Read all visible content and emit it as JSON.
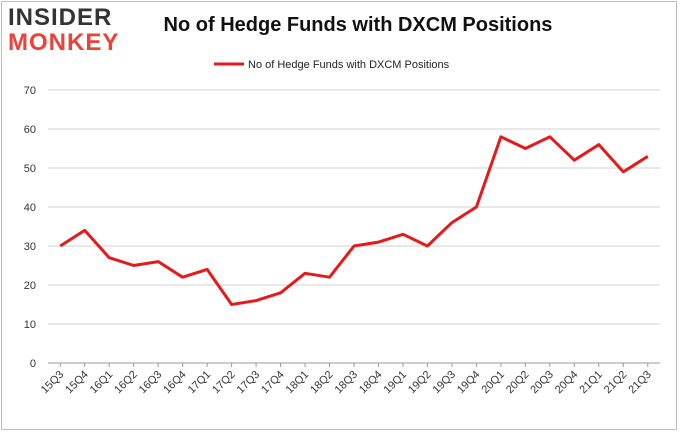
{
  "logo": {
    "line1": "INSIDER",
    "line2": "MONKEY"
  },
  "chart_data": {
    "type": "line",
    "title": "No of Hedge Funds with DXCM Positions",
    "xlabel": "",
    "ylabel": "",
    "categories": [
      "15Q3",
      "15Q4",
      "16Q1",
      "16Q2",
      "16Q3",
      "16Q4",
      "17Q1",
      "17Q2",
      "17Q3",
      "17Q4",
      "18Q1",
      "18Q2",
      "18Q3",
      "18Q4",
      "19Q1",
      "19Q2",
      "19Q3",
      "19Q4",
      "20Q1",
      "20Q2",
      "20Q3",
      "20Q4",
      "21Q1",
      "21Q2",
      "21Q3"
    ],
    "series": [
      {
        "name": "No of Hedge Funds with DXCM Positions",
        "values": [
          30,
          34,
          27,
          25,
          26,
          22,
          24,
          15,
          16,
          18,
          23,
          22,
          30,
          31,
          33,
          30,
          36,
          40,
          58,
          55,
          58,
          52,
          56,
          49,
          53
        ]
      }
    ],
    "ylim": [
      0,
      70
    ],
    "yticks": [
      0,
      10,
      20,
      30,
      40,
      50,
      60,
      70
    ],
    "grid": true,
    "legend_position": "top-center",
    "line_color": "#e41a1c"
  }
}
